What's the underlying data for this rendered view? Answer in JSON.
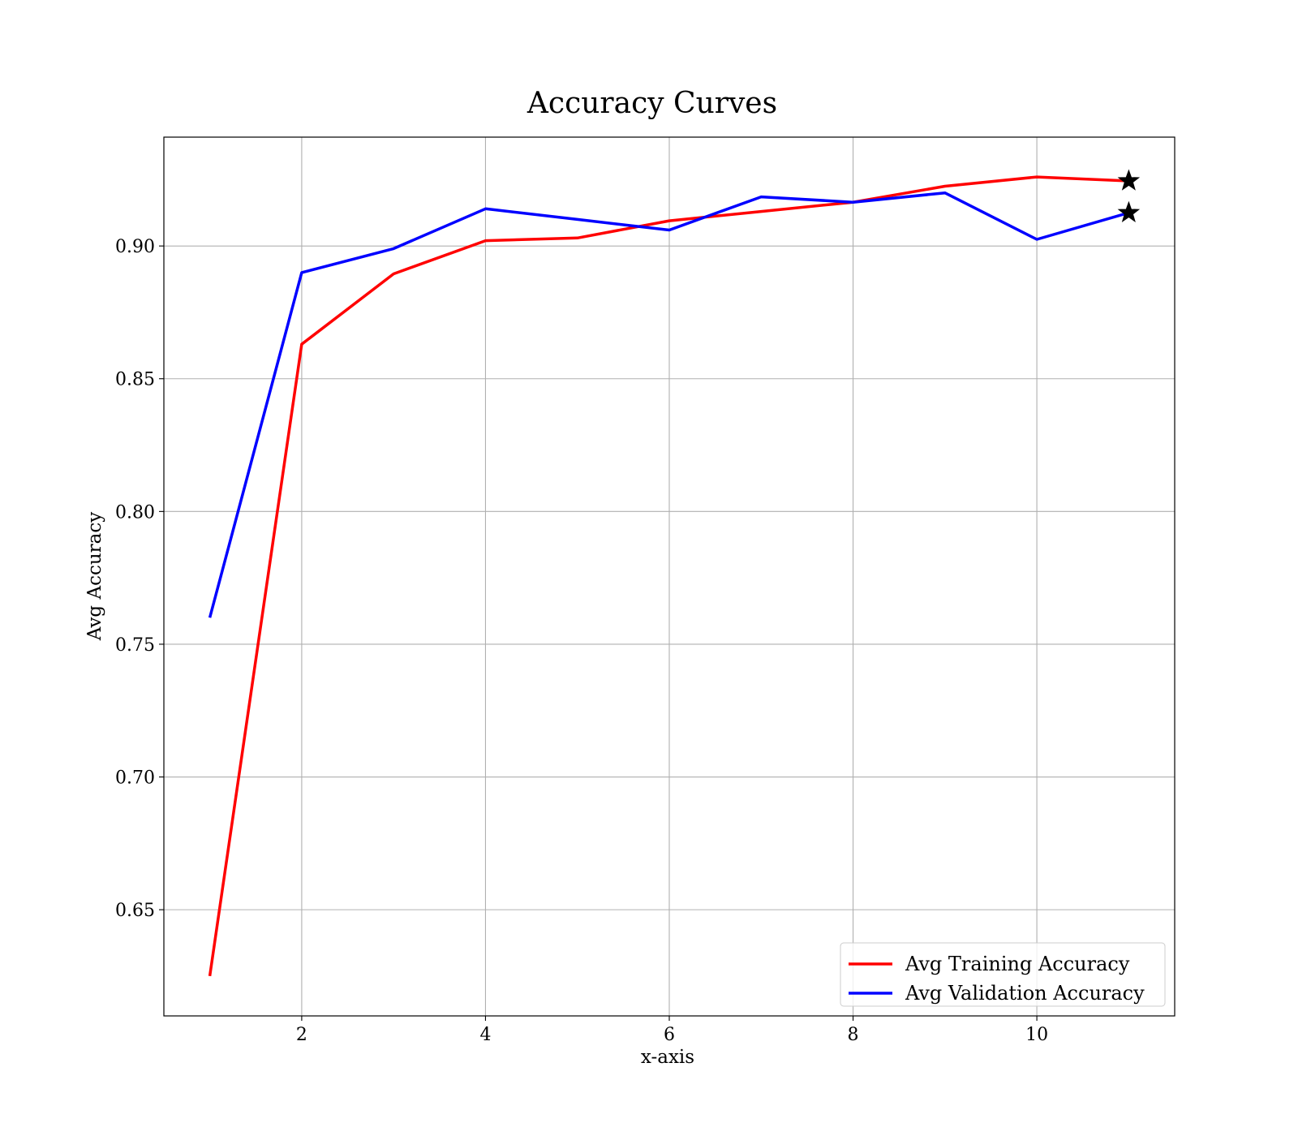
{
  "chart_data": {
    "type": "line",
    "title": "Accuracy Curves",
    "xlabel": "x-axis",
    "ylabel": "Avg Accuracy",
    "xlim": [
      0.5,
      11.5
    ],
    "ylim": [
      0.61,
      0.941
    ],
    "xticks": [
      2,
      4,
      6,
      8,
      10
    ],
    "xtick_labels": [
      "2",
      "4",
      "6",
      "8",
      "10"
    ],
    "yticks": [
      0.65,
      0.7,
      0.75,
      0.8,
      0.85,
      0.9
    ],
    "ytick_labels": [
      "0.65",
      "0.70",
      "0.75",
      "0.80",
      "0.85",
      "0.90"
    ],
    "grid": true,
    "legend_position": "lower-right",
    "x": [
      1,
      2,
      3,
      4,
      5,
      6,
      7,
      8,
      9,
      10,
      11
    ],
    "series": [
      {
        "name": "Avg Training Accuracy",
        "color": "#ff0000",
        "values": [
          0.625,
          0.863,
          0.8895,
          0.902,
          0.903,
          0.9095,
          0.913,
          0.9165,
          0.9225,
          0.926,
          0.9245
        ]
      },
      {
        "name": "Avg Validation Accuracy",
        "color": "#0000ff",
        "values": [
          0.76,
          0.89,
          0.899,
          0.914,
          0.91,
          0.906,
          0.9185,
          0.9165,
          0.92,
          0.9025,
          0.9125
        ]
      }
    ],
    "markers": [
      {
        "series": "Avg Training Accuracy",
        "x": 11,
        "y": 0.9245,
        "symbol": "star",
        "color": "#000000"
      },
      {
        "series": "Avg Validation Accuracy",
        "x": 11,
        "y": 0.9125,
        "symbol": "star",
        "color": "#000000"
      }
    ]
  }
}
